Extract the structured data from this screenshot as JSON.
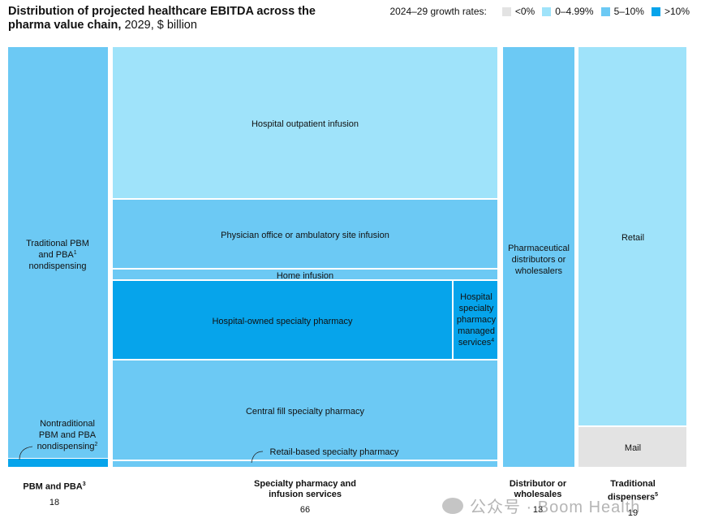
{
  "title": {
    "bold": "Distribution of projected healthcare EBITDA across the pharma value chain,",
    "rest": " 2029, $ billion"
  },
  "legend": {
    "title": "2024–29 growth rates:",
    "items": [
      {
        "label": "<0%",
        "color": "#e3e3e3"
      },
      {
        "label": "0–4.99%",
        "color": "#9fe3fa"
      },
      {
        "label": "5–10%",
        "color": "#6cc9f4"
      },
      {
        "label": ">10%",
        "color": "#06a4eb"
      }
    ]
  },
  "chart_data": {
    "type": "treemap",
    "unit": "$ billion",
    "groups": [
      {
        "name": "PBM and PBA",
        "footnote": "3",
        "value": 18,
        "segments": [
          {
            "label": "Traditional PBM and PBA nondispensing",
            "footnote": "1",
            "growth_band": "5–10%"
          },
          {
            "label": "Nontraditional PBM and PBA nondispensing",
            "footnote": "2",
            "growth_band": ">10%"
          }
        ]
      },
      {
        "name": "Specialty pharmacy and infusion services",
        "value": 66,
        "segments": [
          {
            "label": "Hospital outpatient infusion",
            "growth_band": "0–4.99%"
          },
          {
            "label": "Physician office or ambulatory site infusion",
            "growth_band": "5–10%"
          },
          {
            "label": "Home infusion",
            "growth_band": "5–10%"
          },
          {
            "label": "Hospital-owned specialty pharmacy",
            "growth_band": ">10%"
          },
          {
            "label": "Hospital specialty pharmacy managed services",
            "footnote": "4",
            "growth_band": ">10%"
          },
          {
            "label": "Central fill specialty pharmacy",
            "growth_band": "5–10%"
          },
          {
            "label": "Retail-based specialty pharmacy",
            "growth_band": "5–10%"
          }
        ]
      },
      {
        "name": "Distributor or wholesales",
        "value": 13,
        "segments": [
          {
            "label": "Pharmaceutical distributors or wholesalers",
            "growth_band": "5–10%"
          }
        ]
      },
      {
        "name": "Traditional dispensers",
        "footnote": "5",
        "value": 19,
        "segments": [
          {
            "label": "Retail",
            "growth_band": "0–4.99%"
          },
          {
            "label": "Mail",
            "growth_band": "<0%"
          }
        ]
      }
    ]
  },
  "watermark": "公众号 · Boom Health"
}
